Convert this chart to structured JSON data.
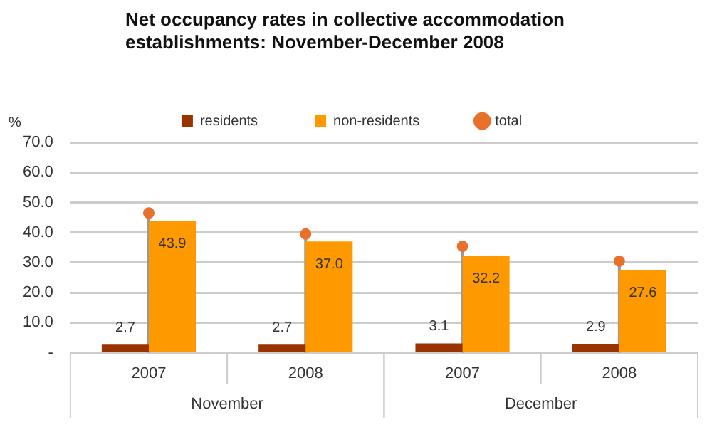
{
  "chart_data": {
    "type": "bar",
    "title": "Net occupancy rates in collective accommodation establishments: November-December 2008",
    "ylabel": "%",
    "categories": [
      "2007",
      "2008",
      "2007",
      "2008"
    ],
    "series": [
      {
        "name": "residents",
        "color": "#993300",
        "values": [
          2.7,
          2.7,
          3.1,
          2.9
        ],
        "value_labels": [
          "2.7",
          "2.7",
          "3.1",
          "2.9"
        ]
      },
      {
        "name": "non-residents",
        "color": "#ff9900",
        "values": [
          43.9,
          37.0,
          32.2,
          27.6
        ],
        "value_labels": [
          "43.9",
          "37.0",
          "32.2",
          "27.6"
        ]
      },
      {
        "name": "total",
        "type": "lollipop",
        "color": "#e8702a",
        "values": [
          46.5,
          39.5,
          35.4,
          30.5
        ]
      }
    ],
    "annotations": [
      "November",
      "December"
    ],
    "ylim": [
      0,
      70
    ],
    "yticks": [
      {
        "value": 0,
        "label": "-"
      },
      {
        "value": 10,
        "label": "10.0"
      },
      {
        "value": 20,
        "label": "20.0"
      },
      {
        "value": 30,
        "label": "30.0"
      },
      {
        "value": 40,
        "label": "40.0"
      },
      {
        "value": 50,
        "label": "50.0"
      },
      {
        "value": 60,
        "label": "60.0"
      },
      {
        "value": 70,
        "label": "70.0"
      }
    ],
    "grid": "y",
    "legend": "top"
  }
}
